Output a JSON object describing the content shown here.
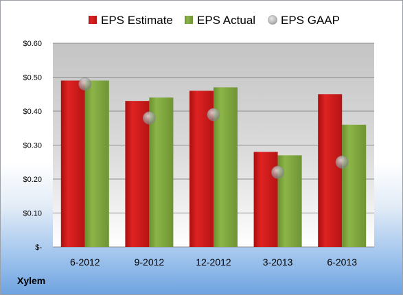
{
  "company": "Xylem",
  "colors": {
    "estimate": "#cc1a1a",
    "actual": "#7ea33d",
    "gaap": "#b8b8b8",
    "plot_bg_top": "#c9c9c9",
    "plot_bg_bottom": "#ffffff"
  },
  "chart_data": {
    "type": "bar",
    "title": "",
    "xlabel": "",
    "ylabel": "",
    "categories": [
      "6-2012",
      "9-2012",
      "12-2012",
      "3-2013",
      "6-2013"
    ],
    "series": [
      {
        "name": "EPS Estimate",
        "kind": "bar",
        "values": [
          0.49,
          0.43,
          0.46,
          0.28,
          0.45
        ]
      },
      {
        "name": "EPS Actual",
        "kind": "bar",
        "values": [
          0.49,
          0.44,
          0.47,
          0.27,
          0.36
        ]
      },
      {
        "name": "EPS GAAP",
        "kind": "marker",
        "values": [
          0.48,
          0.38,
          0.39,
          0.22,
          0.25
        ]
      }
    ],
    "ylim": [
      0,
      0.6
    ],
    "yticks": [
      0,
      0.1,
      0.2,
      0.3,
      0.4,
      0.5,
      0.6
    ],
    "ytick_labels": [
      "$-",
      "$0.10",
      "$0.20",
      "$0.30",
      "$0.40",
      "$0.50",
      "$0.60"
    ],
    "grid": true,
    "legend_position": "top"
  }
}
